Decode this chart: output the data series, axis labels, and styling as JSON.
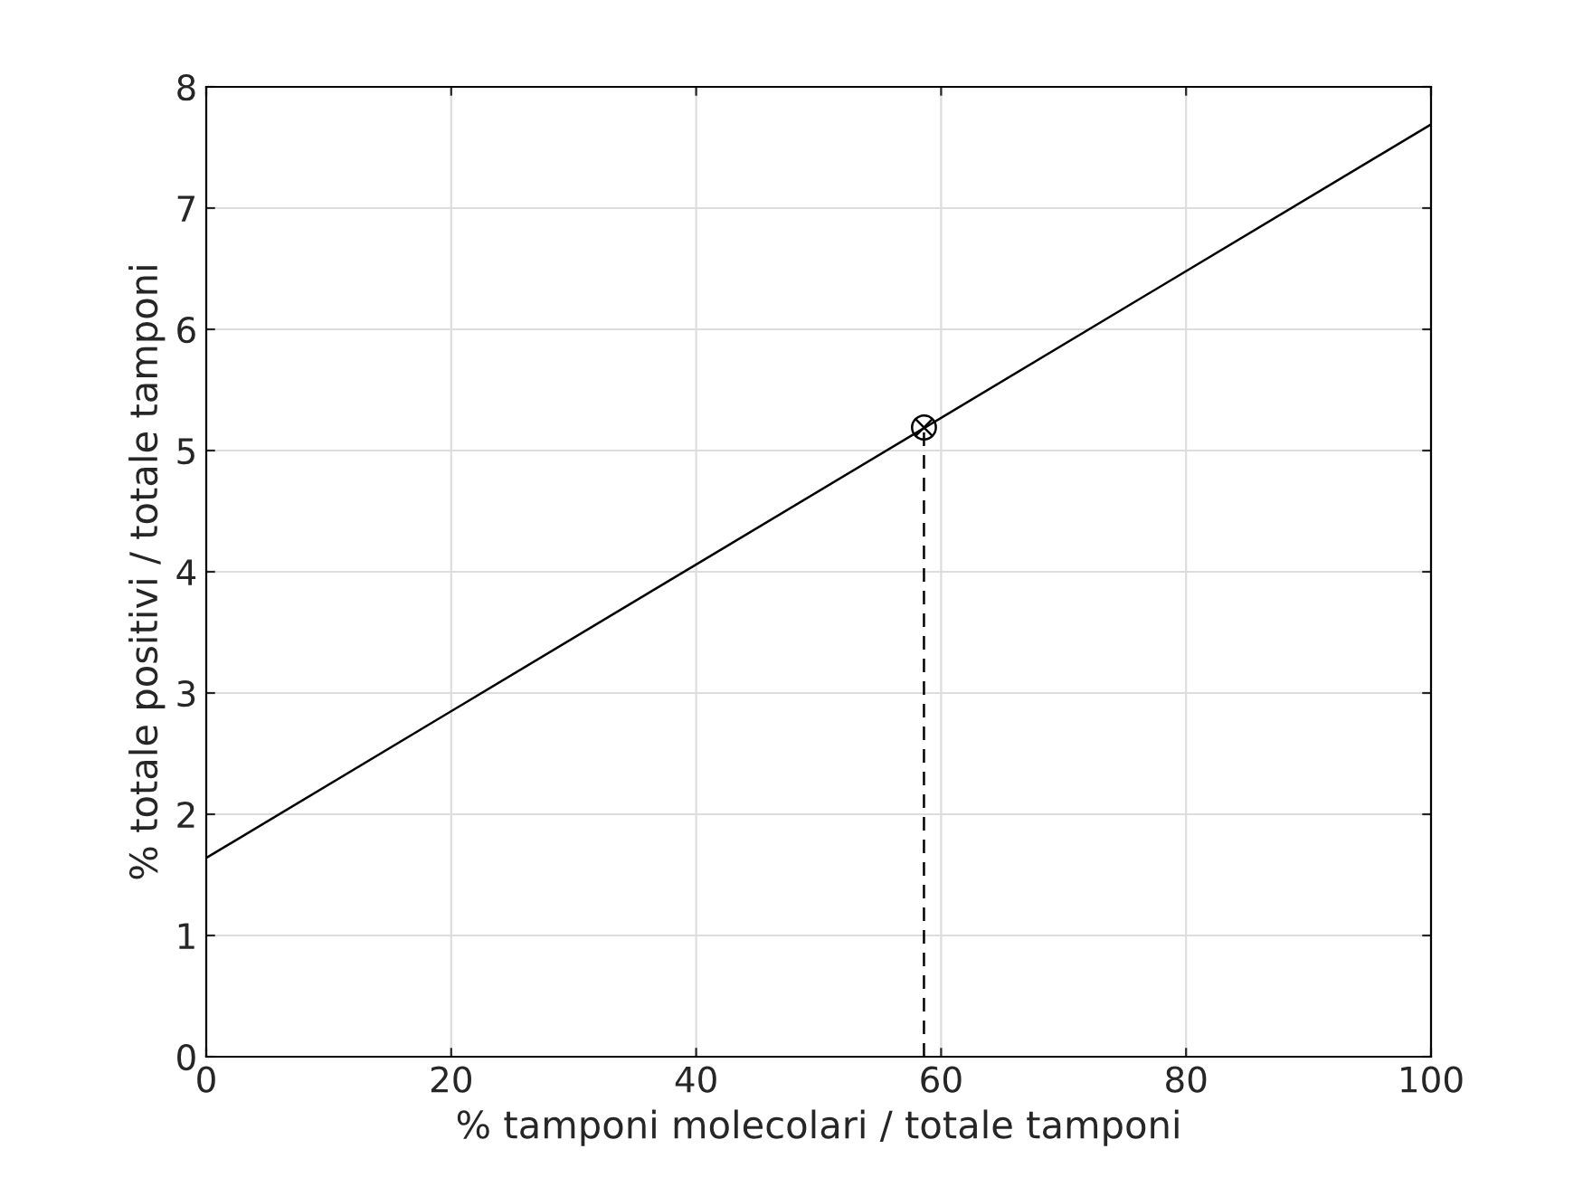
{
  "chart_data": {
    "type": "line",
    "xlabel": "% tamponi molecolari / totale tamponi",
    "ylabel": "% totale positivi / totale tamponi",
    "xlim": [
      0,
      100
    ],
    "xticks": [
      0,
      20,
      40,
      60,
      80,
      100
    ],
    "ylim": [
      0,
      8
    ],
    "yticks": [
      0,
      1,
      2,
      3,
      4,
      5,
      6,
      7,
      8
    ],
    "grid": true,
    "series": [
      {
        "color": "#000000",
        "x": [
          0,
          100
        ],
        "values": [
          1.64,
          7.69
        ],
        "line_style": "solid",
        "marker": "none"
      },
      {
        "type": "line",
        "color": "#000000",
        "x": [
          58.6,
          58.6
        ],
        "values": [
          0,
          5.19
        ],
        "line_style": "dashed"
      },
      {
        "type": "scatter",
        "color": "#000000",
        "x": [
          58.6
        ],
        "values": [
          5.19
        ],
        "marker": "circle"
      }
    ]
  }
}
